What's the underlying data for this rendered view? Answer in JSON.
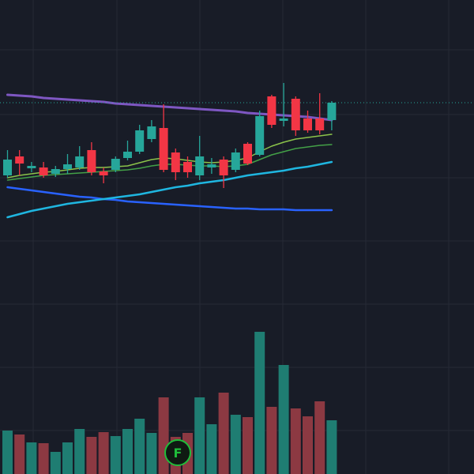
{
  "chart_data": {
    "type": "candlestick",
    "background": "#181c27",
    "up_color": "#26a69a",
    "down_color": "#f23645",
    "volume_up_color": "#1f7d72",
    "volume_down_color": "#8c3942",
    "ylim": [
      0,
      60
    ],
    "volume_ylim": [
      0,
      100
    ],
    "open": [
      37.8,
      40.2,
      38.7,
      38.8,
      38.0,
      38.6,
      38.8,
      41.0,
      38.3,
      38.5,
      40.0,
      40.8,
      42.4,
      43.8,
      40.7,
      39.5,
      37.8,
      38.8,
      39.8,
      38.5,
      41.8,
      40.4,
      47.8,
      44.7,
      47.5,
      45.0,
      45.0,
      44.8
    ],
    "high": [
      41.0,
      41.0,
      39.5,
      39.5,
      39.0,
      40.5,
      41.5,
      42.0,
      38.8,
      40.2,
      42.2,
      44.2,
      44.8,
      46.8,
      41.2,
      40.2,
      42.8,
      40.0,
      40.2,
      41.2,
      42.0,
      46.0,
      48.0,
      49.5,
      47.8,
      46.0,
      48.2,
      47.2
    ],
    "low": [
      37.5,
      37.8,
      38.2,
      37.5,
      37.6,
      38.0,
      38.5,
      37.8,
      36.8,
      38.2,
      39.7,
      40.5,
      42.0,
      38.2,
      37.2,
      37.5,
      37.2,
      38.0,
      36.2,
      38.2,
      39.1,
      40.2,
      43.8,
      44.0,
      42.8,
      43.2,
      43.0,
      43.5
    ],
    "close": [
      39.8,
      39.3,
      39.0,
      37.8,
      38.6,
      39.2,
      40.2,
      38.2,
      37.8,
      39.9,
      40.8,
      43.5,
      44.0,
      38.5,
      38.2,
      38.2,
      40.2,
      39.2,
      37.8,
      40.7,
      39.3,
      45.3,
      44.2,
      45.0,
      43.5,
      43.5,
      43.5,
      47.0
    ],
    "volume": [
      24,
      21.5,
      16.5,
      16,
      10.5,
      16.5,
      25,
      20,
      23,
      20.5,
      25,
      31.5,
      22.5,
      45,
      20,
      22.5,
      45,
      28,
      48,
      34,
      32.5,
      86.5,
      39,
      65.5,
      38,
      33,
      42.5,
      30.5
    ],
    "last_price": 47.0,
    "last_price_color": "#26a69a",
    "series": [
      {
        "color": "#7e57c2",
        "width": 3,
        "values": [
          48.0,
          47.9,
          47.8,
          47.6,
          47.5,
          47.4,
          47.3,
          47.2,
          47.1,
          46.9,
          46.8,
          46.7,
          46.6,
          46.5,
          46.4,
          46.3,
          46.2,
          46.1,
          46.0,
          45.9,
          45.7,
          45.6,
          45.5,
          45.4,
          45.3,
          45.2,
          45.0,
          44.8
        ]
      },
      {
        "color": "#2962ff",
        "width": 2.5,
        "values": [
          36.3,
          36.1,
          35.9,
          35.7,
          35.5,
          35.3,
          35.1,
          35.0,
          34.8,
          34.7,
          34.5,
          34.4,
          34.3,
          34.2,
          34.1,
          34.0,
          33.9,
          33.8,
          33.7,
          33.6,
          33.6,
          33.5,
          33.5,
          33.5,
          33.4,
          33.4,
          33.4,
          33.4
        ]
      },
      {
        "color": "#1fb6e0",
        "width": 2.5,
        "values": [
          32.5,
          32.9,
          33.3,
          33.6,
          33.9,
          34.2,
          34.4,
          34.6,
          34.8,
          35.0,
          35.2,
          35.4,
          35.7,
          36.0,
          36.3,
          36.5,
          36.8,
          37.0,
          37.2,
          37.5,
          37.8,
          38.0,
          38.2,
          38.4,
          38.7,
          38.9,
          39.2,
          39.5
        ]
      },
      {
        "color": "#43a047",
        "width": 1.5,
        "values": [
          37.2,
          37.4,
          37.6,
          37.8,
          37.9,
          38.0,
          38.1,
          38.2,
          38.3,
          38.4,
          38.5,
          38.7,
          39.0,
          39.2,
          39.2,
          39.1,
          39.0,
          39.0,
          38.9,
          39.0,
          39.2,
          39.8,
          40.4,
          40.8,
          41.2,
          41.4,
          41.6,
          41.7
        ]
      },
      {
        "color": "#8bc34a",
        "width": 1.5,
        "values": [
          37.5,
          37.8,
          38.0,
          38.2,
          38.3,
          38.5,
          38.7,
          38.8,
          38.8,
          38.9,
          39.0,
          39.4,
          39.8,
          40.0,
          39.9,
          39.7,
          39.5,
          39.4,
          39.5,
          39.7,
          40.0,
          40.8,
          41.5,
          42.0,
          42.4,
          42.6,
          42.8,
          43.0
        ]
      }
    ],
    "annotations": [
      {
        "text": "F",
        "color": "#1fbd3a"
      }
    ]
  }
}
